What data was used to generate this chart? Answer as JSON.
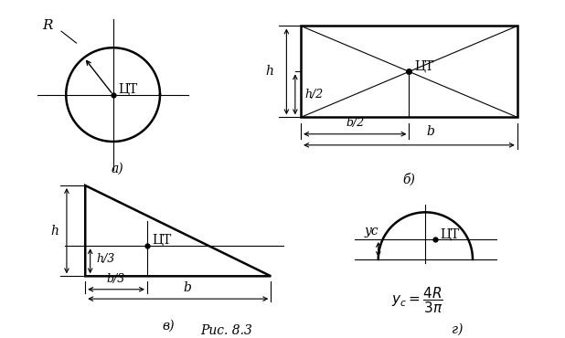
{
  "fig_width": 6.18,
  "fig_height": 3.7,
  "bg_color": "#ffffff",
  "line_color": "#000000",
  "label_a": "а)",
  "label_b": "б)",
  "label_v": "в)",
  "label_g": "г)",
  "caption": "Рис. 8.3",
  "tst_label": "ЦТ",
  "R_label": "R",
  "h_label": "h",
  "h2_label": "h/2",
  "b2_label": "b/2",
  "b_label": "b",
  "h3_label": "h/3",
  "b3_label": "b/3",
  "yc_label": "yc",
  "lw_shape": 1.8,
  "lw_thin": 0.8,
  "fontsize_main": 10,
  "fontsize_small": 9
}
